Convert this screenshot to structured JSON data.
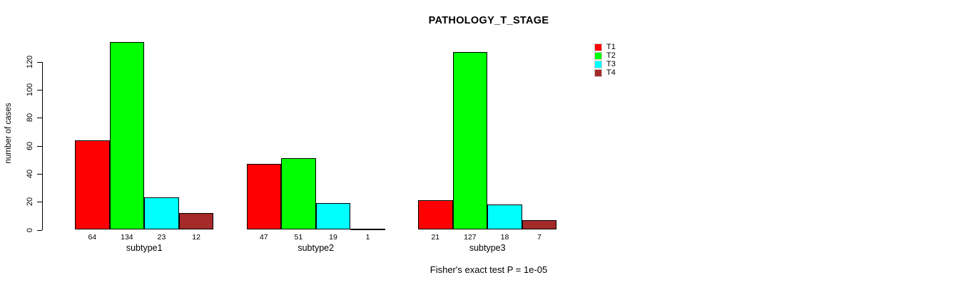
{
  "chart_data": {
    "type": "bar",
    "title": "PATHOLOGY_T_STAGE",
    "categories": [
      "subtype1",
      "subtype2",
      "subtype3"
    ],
    "series": [
      {
        "name": "T1",
        "color": "#ff0000",
        "values": [
          64,
          47,
          21
        ]
      },
      {
        "name": "T2",
        "color": "#00ff00",
        "values": [
          134,
          51,
          127
        ]
      },
      {
        "name": "T3",
        "color": "#00ffff",
        "values": [
          23,
          19,
          18
        ]
      },
      {
        "name": "T4",
        "color": "#a52a2a",
        "values": [
          12,
          1,
          7
        ]
      }
    ],
    "xlabel": "",
    "ylabel": "number of cases",
    "ylim": [
      0,
      120
    ],
    "yticks": [
      0,
      20,
      40,
      60,
      80,
      100,
      120
    ],
    "bar_value_labels": true,
    "grid": false,
    "legend_position": "top-right",
    "annotation": "Fisher's exact test P = 1e-05"
  }
}
